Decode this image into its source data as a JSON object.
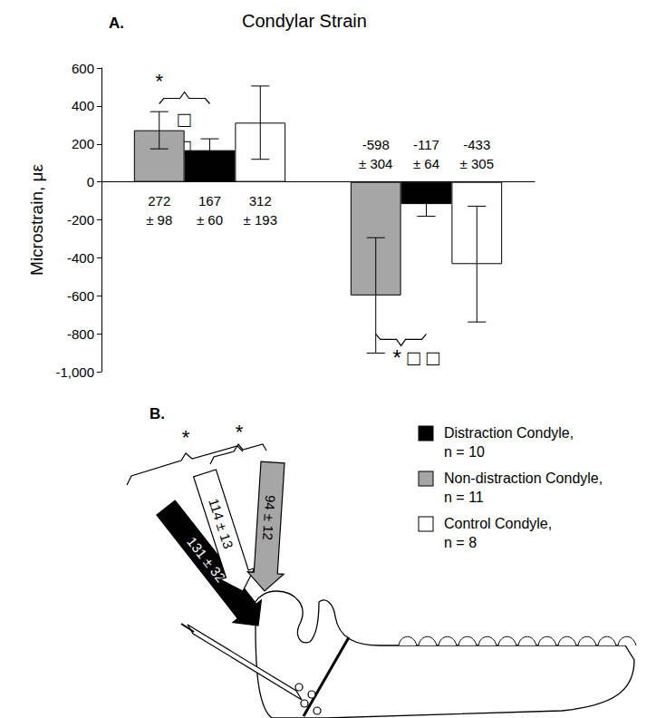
{
  "chart_data": {
    "type": "bar",
    "title": "Condylar Strain",
    "panel_label": "A.",
    "y_label": "Microstrain, με",
    "categories": [
      null,
      null
    ],
    "ylim": [
      -1000,
      600
    ],
    "yticks": [
      -1000,
      -800,
      -600,
      -400,
      -200,
      0,
      200,
      400,
      600
    ],
    "grid": false,
    "data_labels": true,
    "series": [
      {
        "name": "Non-distraction Condyle,\nn = 11",
        "color": "#a6a6a6",
        "values": [
          272,
          -598
        ],
        "errors": [
          98,
          304
        ],
        "value_labels": [
          "272\n± 98",
          "-598\n± 304"
        ]
      },
      {
        "name": "Distraction Condyle,\nn = 10",
        "color": "#000000",
        "values": [
          167,
          -117
        ],
        "errors": [
          60,
          64
        ],
        "value_labels": [
          "167\n± 60",
          "-117\n± 64"
        ]
      },
      {
        "name": "Control Condyle,\nn = 8",
        "color": "#ffffff",
        "values": [
          312,
          -433
        ],
        "errors": [
          193,
          305
        ],
        "value_labels": [
          "312\n± 193",
          "-433\n± 305"
        ]
      }
    ],
    "annotations": [
      "*",
      "□",
      "□",
      "* □ □"
    ]
  },
  "diagram": {
    "panel_label": "B.",
    "arrows": [
      {
        "label": "131 ± 32",
        "color": "#000000"
      },
      {
        "label": "114 ± 13",
        "color": "#ffffff"
      },
      {
        "label": "94 ± 12",
        "color": "#a6a6a6"
      }
    ],
    "brackets": [
      "*",
      "*"
    ]
  }
}
